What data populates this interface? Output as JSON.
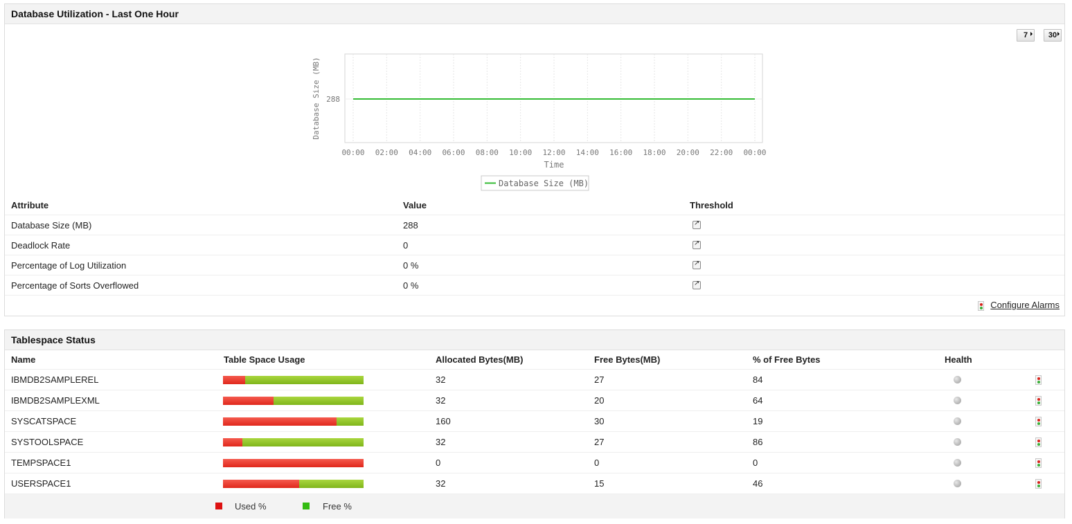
{
  "db_panel": {
    "title": "Database Utilization - Last One Hour",
    "period_buttons": [
      "7",
      "30"
    ],
    "configure_alarms": "Configure Alarms"
  },
  "chart_data": {
    "type": "line",
    "title": "",
    "xlabel": "Time",
    "ylabel": "Database Size (MB)",
    "x": [
      "00:00",
      "02:00",
      "04:00",
      "06:00",
      "08:00",
      "10:00",
      "12:00",
      "14:00",
      "16:00",
      "18:00",
      "20:00",
      "22:00",
      "00:00"
    ],
    "y_ticks": [
      "288"
    ],
    "series": [
      {
        "name": "Database Size (MB)",
        "color": "#33bb33",
        "values": [
          288,
          288,
          288,
          288,
          288,
          288,
          288,
          288,
          288,
          288,
          288,
          288,
          288
        ]
      }
    ],
    "grid": true,
    "legend": "bottom"
  },
  "attributes": {
    "headers": [
      "Attribute",
      "Value",
      "Threshold"
    ],
    "rows": [
      {
        "name": "Database Size (MB)",
        "value": "288"
      },
      {
        "name": "Deadlock Rate",
        "value": "0"
      },
      {
        "name": "Percentage of Log Utilization",
        "value": "0 %"
      },
      {
        "name": "Percentage of Sorts Overflowed",
        "value": "0 %"
      }
    ]
  },
  "tablespace": {
    "title": "Tablespace Status",
    "headers": [
      "Name",
      "Table Space Usage",
      "Allocated Bytes(MB)",
      "Free Bytes(MB)",
      "% of Free Bytes",
      "Health"
    ],
    "rows": [
      {
        "name": "IBMDB2SAMPLEREL",
        "used_pct": 16,
        "allocated": "32",
        "free": "27",
        "pct_free": "84"
      },
      {
        "name": "IBMDB2SAMPLEXML",
        "used_pct": 36,
        "allocated": "32",
        "free": "20",
        "pct_free": "64"
      },
      {
        "name": "SYSCATSPACE",
        "used_pct": 81,
        "allocated": "160",
        "free": "30",
        "pct_free": "19"
      },
      {
        "name": "SYSTOOLSPACE",
        "used_pct": 14,
        "allocated": "32",
        "free": "27",
        "pct_free": "86"
      },
      {
        "name": "TEMPSPACE1",
        "used_pct": 100,
        "allocated": "0",
        "free": "0",
        "pct_free": "0"
      },
      {
        "name": "USERSPACE1",
        "used_pct": 54,
        "allocated": "32",
        "free": "15",
        "pct_free": "46"
      }
    ],
    "legend": {
      "used": "Used %",
      "free": "Free %",
      "used_color": "#dd1111",
      "free_color": "#33bb11"
    }
  }
}
